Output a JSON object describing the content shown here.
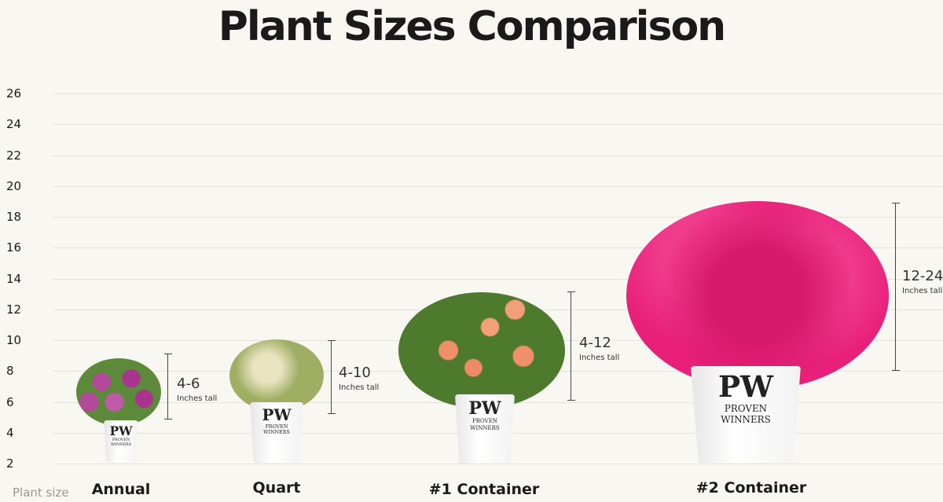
{
  "title": "Plant Sizes Comparison",
  "axis_label": "Plant size",
  "pot_brand": {
    "logo": "PW",
    "line1": "PROVEN",
    "line2": "WINNERS"
  },
  "chart_data": {
    "type": "range",
    "title": "Plant Sizes Comparison",
    "xlabel": "Plant size",
    "ylabel": "",
    "ylim": [
      2,
      26
    ],
    "yticks": [
      "26",
      "24",
      "22",
      "20",
      "18",
      "16",
      "14",
      "12",
      "10",
      "8",
      "6",
      "4",
      "2"
    ],
    "grid": true,
    "categories": [
      "Annual",
      "Quart",
      "#1 Container",
      "#2 Container"
    ],
    "ranges": [
      {
        "label": "4-6",
        "low": 4,
        "high": 6,
        "unit": "Inches tall"
      },
      {
        "label": "4-10",
        "low": 4,
        "high": 10,
        "unit": "Inches tall"
      },
      {
        "label": "4-12",
        "low": 4,
        "high": 12,
        "unit": "Inches tall"
      },
      {
        "label": "12-24",
        "low": 12,
        "high": 24,
        "unit": "Inches tall"
      }
    ],
    "colors": {
      "annual": "#a8348f",
      "quart": "#b9c07a",
      "container1": "#f0906a",
      "container2": "#e8207a",
      "foliage": "#4d7a2c"
    }
  }
}
